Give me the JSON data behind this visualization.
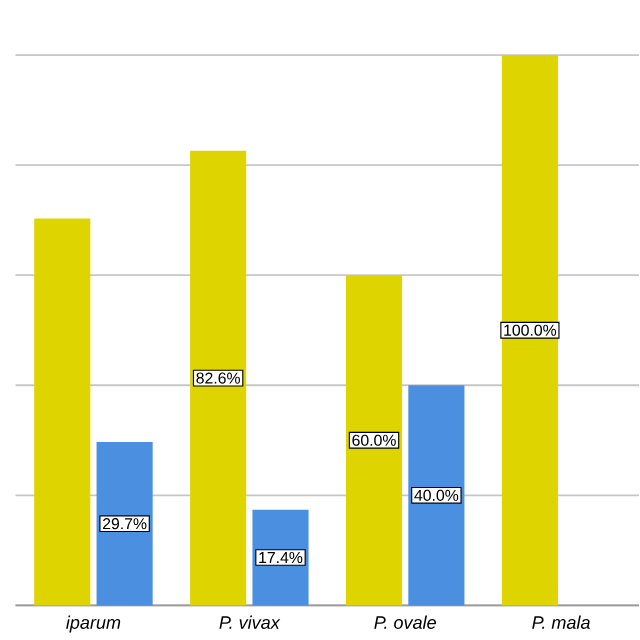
{
  "chart_data": {
    "type": "bar",
    "categories": [
      "iparum",
      "P. vivax",
      "P. ovale",
      "P. mala"
    ],
    "series": [
      {
        "color": "#ded500",
        "values": [
          70.3,
          82.6,
          60.0,
          100.0
        ],
        "value_labels": [
          null,
          "82.6%",
          "60.0%",
          "100.0%"
        ]
      },
      {
        "color": "#4a8fe0",
        "values": [
          29.7,
          17.4,
          40.0,
          null
        ],
        "value_labels": [
          "29.7%",
          "17.4%",
          "40.0%",
          null
        ]
      }
    ],
    "yticks": [
      {
        "value": 0,
        "label": null
      },
      {
        "value": 20,
        "label": null
      },
      {
        "value": 40,
        "label": null
      },
      {
        "value": 60,
        "label": null
      },
      {
        "value": 80,
        "label": null
      },
      {
        "value": 100,
        "label": null
      }
    ],
    "grid": "y",
    "tick_labels": "x"
  }
}
